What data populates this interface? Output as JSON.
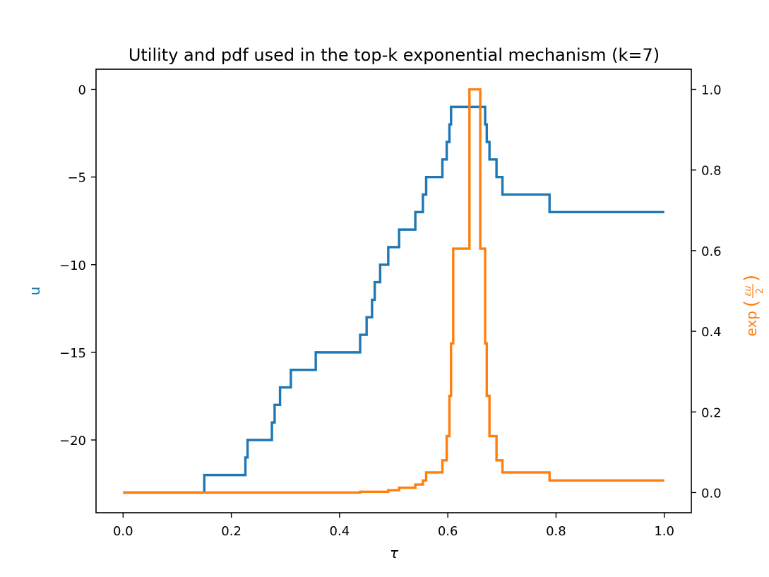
{
  "chart_data": {
    "type": "line",
    "title": "Utility and pdf used in the top-k exponential mechanism (k=7)",
    "xlabel": "τ",
    "ylabel_left": "u",
    "ylabel_right": "exp (εu/2)",
    "ylabel_right_parts": {
      "prefix": "exp",
      "numerator": "εu",
      "denominator": "2"
    },
    "xlim": [
      -0.05,
      1.05
    ],
    "ylim_left": [
      -24.15,
      1.15
    ],
    "ylim_right": [
      -0.05,
      1.05
    ],
    "x_ticks": [
      "0.0",
      "0.2",
      "0.4",
      "0.6",
      "0.8",
      "1.0"
    ],
    "y_left_ticks": [
      "0",
      "−5",
      "−10",
      "−15",
      "−20"
    ],
    "y_right_ticks": [
      "0.0",
      "0.2",
      "0.4",
      "0.6",
      "0.8",
      "1.0"
    ],
    "colors": {
      "u": "#1f77b4",
      "pdf": "#ff7f0e",
      "axes": "#000000"
    },
    "series": [
      {
        "axis": "left",
        "x": [
          0.0,
          0.15,
          0.15,
          0.226,
          0.226,
          0.23,
          0.23,
          0.275,
          0.275,
          0.28,
          0.28,
          0.29,
          0.29,
          0.296,
          0.296,
          0.31,
          0.31,
          0.356,
          0.356,
          0.438,
          0.438,
          0.45,
          0.45,
          0.46,
          0.46,
          0.465,
          0.465,
          0.475,
          0.475,
          0.49,
          0.49,
          0.51,
          0.51,
          0.54,
          0.54,
          0.554,
          0.554,
          0.56,
          0.56,
          0.59,
          0.59,
          0.598,
          0.598,
          0.603,
          0.603,
          0.606,
          0.606,
          0.61,
          0.61,
          0.669,
          0.669,
          0.672,
          0.672,
          0.677,
          0.677,
          0.68,
          0.68,
          0.69,
          0.69,
          0.701,
          0.701,
          0.788,
          0.788,
          1.0
        ],
        "y": [
          -23,
          -23,
          -22,
          -22,
          -21,
          -21,
          -20,
          -20,
          -19,
          -19,
          -18,
          -18,
          -17,
          -17,
          -17,
          -17,
          -16,
          -16,
          -15,
          -15,
          -14,
          -14,
          -13,
          -13,
          -12,
          -12,
          -11,
          -11,
          -10,
          -10,
          -9,
          -9,
          -8,
          -8,
          -7,
          -7,
          -6,
          -6,
          -5,
          -5,
          -4,
          -4,
          -3,
          -3,
          -2,
          -2,
          -1,
          -1,
          -1,
          -1,
          -2,
          -2,
          -3,
          -3,
          -4,
          -4,
          -4,
          -4,
          -5,
          -5,
          -6,
          -6,
          -7,
          -7
        ]
      },
      {
        "axis": "right",
        "x": [
          0.0,
          0.438,
          0.438,
          0.49,
          0.49,
          0.51,
          0.51,
          0.54,
          0.54,
          0.554,
          0.554,
          0.56,
          0.56,
          0.59,
          0.59,
          0.598,
          0.598,
          0.603,
          0.603,
          0.606,
          0.606,
          0.61,
          0.61,
          0.64,
          0.64,
          0.66,
          0.66,
          0.669,
          0.669,
          0.672,
          0.672,
          0.677,
          0.677,
          0.69,
          0.69,
          0.701,
          0.701,
          0.788,
          0.788,
          1.0
        ],
        "y": [
          0.0,
          0.0,
          0.002,
          0.002,
          0.006,
          0.006,
          0.012,
          0.012,
          0.02,
          0.02,
          0.03,
          0.03,
          0.05,
          0.05,
          0.08,
          0.08,
          0.14,
          0.14,
          0.24,
          0.24,
          0.37,
          0.37,
          0.605,
          0.605,
          1.0,
          1.0,
          0.605,
          0.605,
          0.37,
          0.37,
          0.24,
          0.24,
          0.14,
          0.14,
          0.08,
          0.08,
          0.05,
          0.05,
          0.03,
          0.03
        ]
      }
    ],
    "grid": false,
    "legend": "none"
  }
}
